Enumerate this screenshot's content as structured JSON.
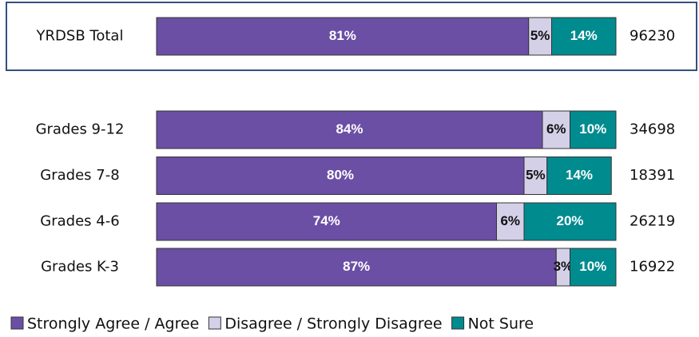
{
  "chart_data": {
    "type": "stacked_bar_horizontal",
    "categories": [
      "YRDSB Total",
      "Grades 9-12",
      "Grades 7-8",
      "Grades 4-6",
      "Grades K-3"
    ],
    "series": [
      {
        "name": "Strongly Agree / Agree",
        "color": "#6b4fa5",
        "values": [
          81,
          84,
          80,
          74,
          87
        ],
        "value_labels": [
          "81%",
          "84%",
          "80%",
          "74%",
          "87%"
        ],
        "label_color": "#ffffff"
      },
      {
        "name": "Disagree / Strongly Disagree",
        "color": "#d4d0e8",
        "values": [
          5,
          6,
          5,
          6,
          3
        ],
        "value_labels": [
          "5%",
          "6%",
          "5%",
          "6%",
          "3%"
        ],
        "label_color": "#111111"
      },
      {
        "name": "Not Sure",
        "color": "#008b8f",
        "values": [
          14,
          10,
          14,
          20,
          10
        ],
        "value_labels": [
          "14%",
          "10%",
          "14%",
          "20%",
          "10%"
        ],
        "label_color": "#ffffff"
      }
    ],
    "counts": [
      "96230",
      "34698",
      "18391",
      "26219",
      "16922"
    ],
    "xlim": [
      0,
      100
    ]
  }
}
